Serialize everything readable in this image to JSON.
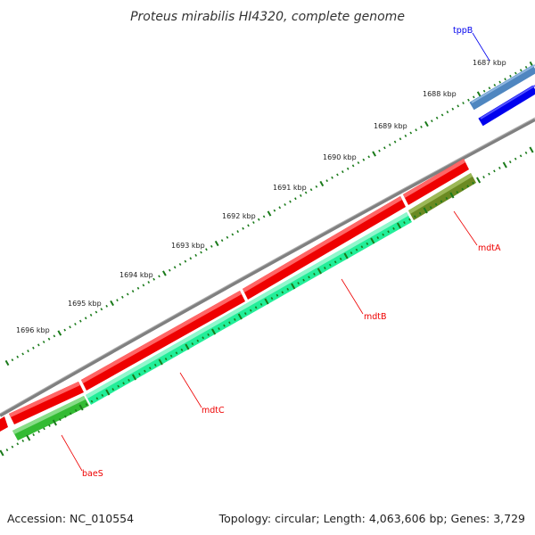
{
  "title": "Proteus mirabilis HI4320, complete genome",
  "footer": {
    "accession": "Accession: NC_010554",
    "summary": "Topology: circular; Length: 4,063,606 bp; Genes: 3,729"
  },
  "ruler": {
    "labels": [
      "1687 kbp",
      "1688 kbp",
      "1689 kbp",
      "1690 kbp",
      "1691 kbp",
      "1692 kbp",
      "1693 kbp",
      "1694 kbp",
      "1695 kbp",
      "1696 kbp"
    ]
  },
  "colors": {
    "forward_gene": "#ff0000",
    "reverse_gene": "#0000ee",
    "backbone": "#808080",
    "tick": "#1a7a1a",
    "cds_cyan": "#22ee99",
    "cds_green": "#33bb33",
    "cds_olive": "#6b8a22",
    "cds_steel": "#4f86c0"
  },
  "genes": [
    {
      "name": "tppB",
      "color": "#0000ee"
    },
    {
      "name": "mdtA",
      "color": "#ee0000"
    },
    {
      "name": "mdtB",
      "color": "#ee0000"
    },
    {
      "name": "mdtC",
      "color": "#ee0000"
    },
    {
      "name": "baeS",
      "color": "#ee0000"
    }
  ]
}
